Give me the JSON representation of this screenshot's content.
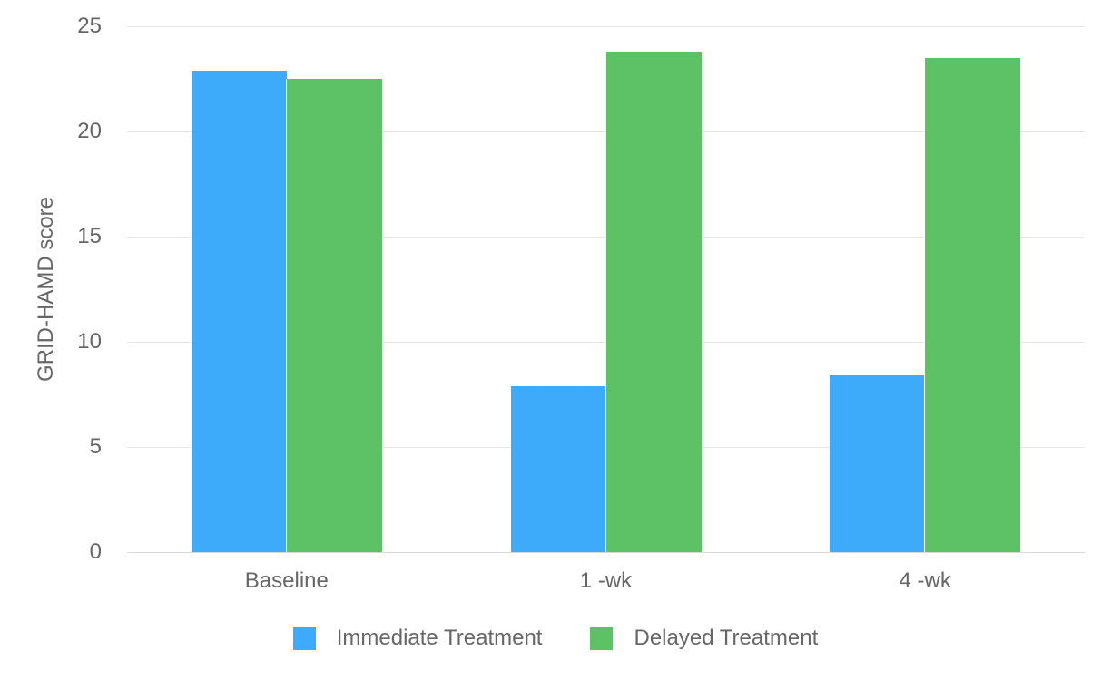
{
  "chart_data": {
    "type": "bar",
    "title": "",
    "categories": [
      "Baseline",
      "1 -wk",
      "4 -wk"
    ],
    "series": [
      {
        "name": "Immediate Treatment",
        "color": "#3eabfa",
        "values": [
          22.9,
          7.9,
          8.4
        ]
      },
      {
        "name": "Delayed Treatment",
        "color": "#5dc166",
        "values": [
          22.5,
          23.8,
          23.5
        ]
      }
    ],
    "xlabel": "",
    "ylabel": "GRID-HAMD score",
    "ylim": [
      0,
      25
    ],
    "yticks": [
      0,
      5,
      10,
      15,
      20,
      25
    ],
    "grid": true,
    "legend_position": "bottom",
    "colors": {
      "background": "#ffffff",
      "gridline": "#e6e6e6",
      "zero_line": "#d9d9d9",
      "text": "#666666"
    }
  }
}
